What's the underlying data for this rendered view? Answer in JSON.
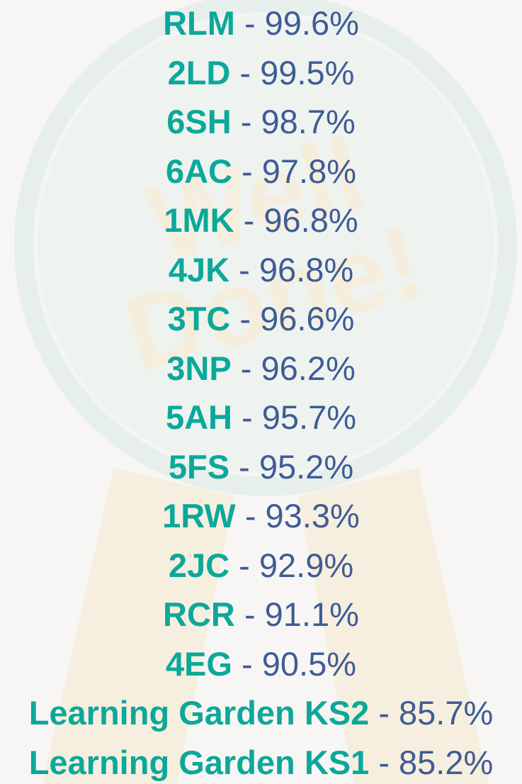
{
  "separator": "-",
  "rows": [
    {
      "name": "RLM",
      "value": "99.6%"
    },
    {
      "name": "2LD",
      "value": "99.5%"
    },
    {
      "name": "6SH",
      "value": "98.7%"
    },
    {
      "name": "6AC",
      "value": "97.8%"
    },
    {
      "name": "1MK",
      "value": "96.8%"
    },
    {
      "name": "4JK",
      "value": "96.8%"
    },
    {
      "name": "3TC",
      "value": "96.6%"
    },
    {
      "name": "3NP",
      "value": "96.2%"
    },
    {
      "name": "5AH",
      "value": "95.7%"
    },
    {
      "name": "5FS",
      "value": "95.2%"
    },
    {
      "name": "1RW",
      "value": "93.3%"
    },
    {
      "name": "2JC",
      "value": "92.9%"
    },
    {
      "name": "RCR",
      "value": "91.1%"
    },
    {
      "name": "4EG",
      "value": "90.5%"
    },
    {
      "name": "Learning Garden KS2",
      "value": "85.7%"
    },
    {
      "name": "Learning Garden KS1",
      "value": "85.2%"
    }
  ]
}
